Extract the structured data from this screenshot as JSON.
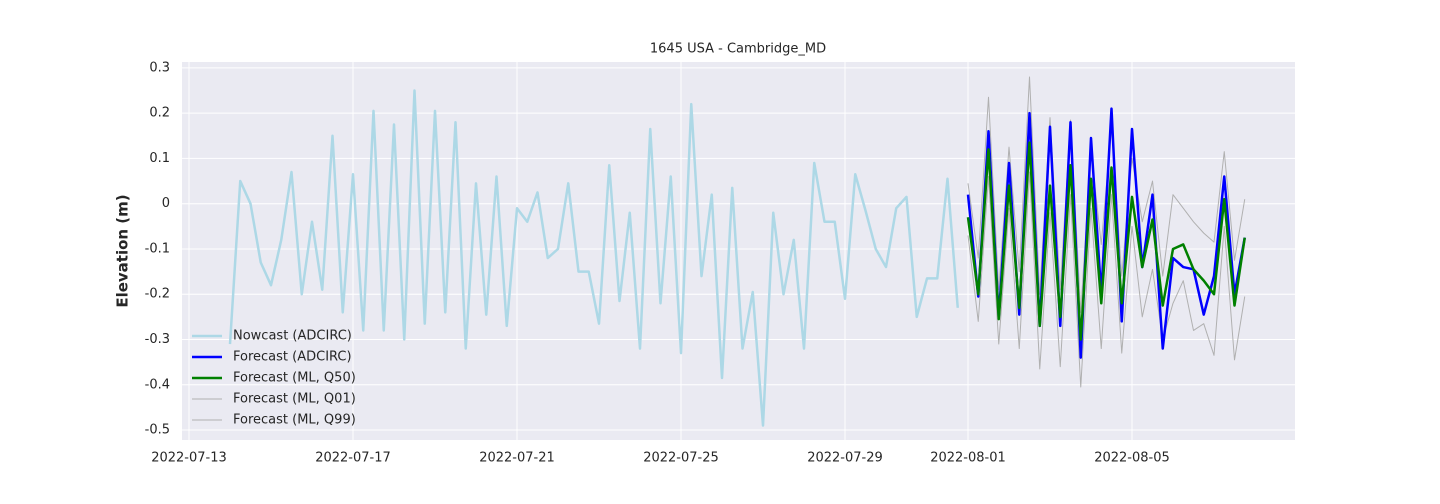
{
  "chart_data": {
    "type": "line",
    "title": "1645 USA - Cambridge_MD",
    "ylabel": "Elevation (m)",
    "xlim": [
      "2022-07-12T19:54",
      "2022-08-08T23:25"
    ],
    "xticks": [
      "2022-07-13",
      "2022-07-17",
      "2022-07-21",
      "2022-07-25",
      "2022-07-29",
      "2022-08-01",
      "2022-08-05"
    ],
    "ylim": [
      -0.522,
      0.313
    ],
    "yticks": [
      -0.5,
      -0.4,
      -0.3,
      -0.2,
      -0.1,
      0.0,
      0.1,
      0.2,
      0.3
    ],
    "grid": true,
    "background": "#eaeaf2",
    "legend": "lower left",
    "series": [
      {
        "name": "Nowcast (ADCIRC)",
        "color": "#add8e6",
        "width": 2.5,
        "x": [
          "2022-07-14T00:00",
          "2022-07-14T06:00",
          "2022-07-14T12:00",
          "2022-07-14T18:00",
          "2022-07-15T00:00",
          "2022-07-15T06:00",
          "2022-07-15T12:00",
          "2022-07-15T18:00",
          "2022-07-16T00:00",
          "2022-07-16T06:00",
          "2022-07-16T12:00",
          "2022-07-16T18:00",
          "2022-07-17T00:00",
          "2022-07-17T06:00",
          "2022-07-17T12:00",
          "2022-07-17T18:00",
          "2022-07-18T00:00",
          "2022-07-18T06:00",
          "2022-07-18T12:00",
          "2022-07-18T18:00",
          "2022-07-19T00:00",
          "2022-07-19T06:00",
          "2022-07-19T12:00",
          "2022-07-19T18:00",
          "2022-07-20T00:00",
          "2022-07-20T06:00",
          "2022-07-20T12:00",
          "2022-07-20T18:00",
          "2022-07-21T00:00",
          "2022-07-21T06:00",
          "2022-07-21T12:00",
          "2022-07-21T18:00",
          "2022-07-22T00:00",
          "2022-07-22T06:00",
          "2022-07-22T12:00",
          "2022-07-22T18:00",
          "2022-07-23T00:00",
          "2022-07-23T06:00",
          "2022-07-23T12:00",
          "2022-07-23T18:00",
          "2022-07-24T00:00",
          "2022-07-24T06:00",
          "2022-07-24T12:00",
          "2022-07-24T18:00",
          "2022-07-25T00:00",
          "2022-07-25T06:00",
          "2022-07-25T12:00",
          "2022-07-25T18:00",
          "2022-07-26T00:00",
          "2022-07-26T06:00",
          "2022-07-26T12:00",
          "2022-07-26T18:00",
          "2022-07-27T00:00",
          "2022-07-27T06:00",
          "2022-07-27T12:00",
          "2022-07-27T18:00",
          "2022-07-28T00:00",
          "2022-07-28T06:00",
          "2022-07-28T12:00",
          "2022-07-28T18:00",
          "2022-07-29T00:00",
          "2022-07-29T06:00",
          "2022-07-29T12:00",
          "2022-07-29T18:00",
          "2022-07-30T00:00",
          "2022-07-30T06:00",
          "2022-07-30T12:00",
          "2022-07-30T18:00",
          "2022-07-31T00:00",
          "2022-07-31T06:00",
          "2022-07-31T12:00",
          "2022-07-31T18:00"
        ],
        "values": [
          -0.31,
          0.05,
          0.0,
          -0.13,
          -0.18,
          -0.08,
          0.07,
          -0.2,
          -0.04,
          -0.19,
          0.15,
          -0.24,
          0.065,
          -0.28,
          0.205,
          -0.28,
          0.175,
          -0.3,
          0.25,
          -0.265,
          0.205,
          -0.24,
          0.18,
          -0.32,
          0.045,
          -0.245,
          0.06,
          -0.27,
          -0.01,
          -0.04,
          0.025,
          -0.12,
          -0.1,
          0.045,
          -0.15,
          -0.15,
          -0.265,
          0.085,
          -0.215,
          -0.02,
          -0.32,
          0.165,
          -0.22,
          0.06,
          -0.33,
          0.22,
          -0.16,
          0.02,
          -0.385,
          0.035,
          -0.32,
          -0.195,
          -0.49,
          -0.02,
          -0.2,
          -0.08,
          -0.32,
          0.09,
          -0.04,
          -0.04,
          -0.21,
          0.065,
          -0.015,
          -0.1,
          -0.14,
          -0.01,
          0.015,
          -0.25,
          -0.165,
          -0.165,
          0.055,
          -0.23
        ]
      },
      {
        "name": "Forecast (ADCIRC)",
        "color": "#0000ff",
        "width": 2.5,
        "x": [
          "2022-08-01T00:00",
          "2022-08-01T06:00",
          "2022-08-01T12:00",
          "2022-08-01T18:00",
          "2022-08-02T00:00",
          "2022-08-02T06:00",
          "2022-08-02T12:00",
          "2022-08-02T18:00",
          "2022-08-03T00:00",
          "2022-08-03T06:00",
          "2022-08-03T12:00",
          "2022-08-03T18:00",
          "2022-08-04T00:00",
          "2022-08-04T06:00",
          "2022-08-04T12:00",
          "2022-08-04T18:00",
          "2022-08-05T00:00",
          "2022-08-05T06:00",
          "2022-08-05T12:00",
          "2022-08-05T18:00",
          "2022-08-06T00:00",
          "2022-08-06T06:00",
          "2022-08-06T12:00",
          "2022-08-06T18:00",
          "2022-08-07T00:00",
          "2022-08-07T06:00",
          "2022-08-07T12:00",
          "2022-08-07T18:00"
        ],
        "values": [
          0.02,
          -0.205,
          0.16,
          -0.25,
          0.09,
          -0.245,
          0.2,
          -0.27,
          0.17,
          -0.27,
          0.18,
          -0.34,
          0.145,
          -0.2,
          0.21,
          -0.26,
          0.165,
          -0.14,
          0.02,
          -0.32,
          -0.12,
          -0.14,
          -0.145,
          -0.245,
          -0.16,
          0.06,
          -0.2,
          -0.075
        ]
      },
      {
        "name": "Forecast (ML, Q50)",
        "color": "#008000",
        "width": 2.5,
        "x": [
          "2022-08-01T00:00",
          "2022-08-01T06:00",
          "2022-08-01T12:00",
          "2022-08-01T18:00",
          "2022-08-02T00:00",
          "2022-08-02T06:00",
          "2022-08-02T12:00",
          "2022-08-02T18:00",
          "2022-08-03T00:00",
          "2022-08-03T06:00",
          "2022-08-03T12:00",
          "2022-08-03T18:00",
          "2022-08-04T00:00",
          "2022-08-04T06:00",
          "2022-08-04T12:00",
          "2022-08-04T18:00",
          "2022-08-05T00:00",
          "2022-08-05T06:00",
          "2022-08-05T12:00",
          "2022-08-05T18:00",
          "2022-08-06T00:00",
          "2022-08-06T06:00",
          "2022-08-06T12:00",
          "2022-08-06T18:00",
          "2022-08-07T00:00",
          "2022-08-07T06:00",
          "2022-08-07T12:00",
          "2022-08-07T18:00"
        ],
        "values": [
          -0.03,
          -0.2,
          0.12,
          -0.255,
          0.04,
          -0.23,
          0.135,
          -0.27,
          0.04,
          -0.25,
          0.085,
          -0.3,
          0.055,
          -0.22,
          0.08,
          -0.22,
          0.015,
          -0.14,
          -0.035,
          -0.225,
          -0.1,
          -0.09,
          -0.145,
          -0.17,
          -0.2,
          0.01,
          -0.225,
          -0.075
        ]
      },
      {
        "name": "Forecast (ML, Q01)",
        "color": "#b0b0b0",
        "width": 1,
        "x": [
          "2022-08-01T00:00",
          "2022-08-01T06:00",
          "2022-08-01T12:00",
          "2022-08-01T18:00",
          "2022-08-02T00:00",
          "2022-08-02T06:00",
          "2022-08-02T12:00",
          "2022-08-02T18:00",
          "2022-08-03T00:00",
          "2022-08-03T06:00",
          "2022-08-03T12:00",
          "2022-08-03T18:00",
          "2022-08-04T00:00",
          "2022-08-04T06:00",
          "2022-08-04T12:00",
          "2022-08-04T18:00",
          "2022-08-05T00:00",
          "2022-08-05T06:00",
          "2022-08-05T12:00",
          "2022-08-05T18:00",
          "2022-08-06T00:00",
          "2022-08-06T06:00",
          "2022-08-06T12:00",
          "2022-08-06T18:00",
          "2022-08-07T00:00",
          "2022-08-07T06:00",
          "2022-08-07T12:00",
          "2022-08-07T18:00"
        ],
        "values": [
          -0.07,
          -0.26,
          0.06,
          -0.31,
          -0.01,
          -0.32,
          0.07,
          -0.365,
          -0.02,
          -0.36,
          0.02,
          -0.405,
          -0.01,
          -0.32,
          0.02,
          -0.33,
          -0.05,
          -0.25,
          -0.145,
          -0.3,
          -0.22,
          -0.17,
          -0.28,
          -0.265,
          -0.335,
          -0.05,
          -0.345,
          -0.205
        ]
      },
      {
        "name": "Forecast (ML, Q99)",
        "color": "#b0b0b0",
        "width": 1,
        "x": [
          "2022-08-01T00:00",
          "2022-08-01T06:00",
          "2022-08-01T12:00",
          "2022-08-01T18:00",
          "2022-08-02T00:00",
          "2022-08-02T06:00",
          "2022-08-02T12:00",
          "2022-08-02T18:00",
          "2022-08-03T00:00",
          "2022-08-03T06:00",
          "2022-08-03T12:00",
          "2022-08-03T18:00",
          "2022-08-04T00:00",
          "2022-08-04T06:00",
          "2022-08-04T12:00",
          "2022-08-04T18:00",
          "2022-08-05T00:00",
          "2022-08-05T06:00",
          "2022-08-05T12:00",
          "2022-08-05T18:00",
          "2022-08-06T00:00",
          "2022-08-06T06:00",
          "2022-08-06T12:00",
          "2022-08-06T18:00",
          "2022-08-07T00:00",
          "2022-08-07T06:00",
          "2022-08-07T12:00",
          "2022-08-07T18:00"
        ],
        "values": [
          0.045,
          -0.12,
          0.235,
          -0.19,
          0.125,
          -0.15,
          0.28,
          -0.2,
          0.19,
          -0.19,
          0.185,
          -0.24,
          0.12,
          -0.09,
          0.17,
          -0.16,
          0.1,
          -0.04,
          0.05,
          -0.16,
          0.02,
          -0.01,
          -0.04,
          -0.065,
          -0.085,
          0.115,
          -0.125,
          0.01
        ]
      }
    ]
  }
}
